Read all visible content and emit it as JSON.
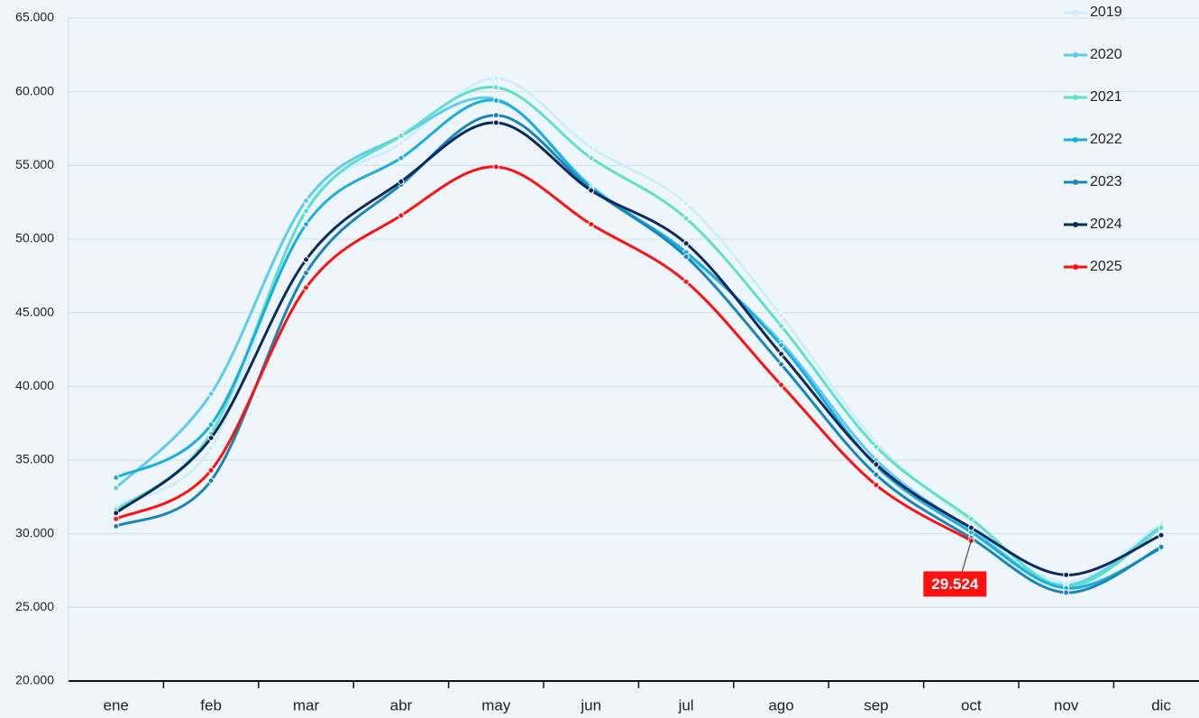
{
  "chart_data": {
    "type": "line",
    "categories": [
      "ene",
      "feb",
      "mar",
      "abr",
      "may",
      "jun",
      "jul",
      "ago",
      "sep",
      "oct",
      "nov",
      "dic"
    ],
    "ylim": [
      20000,
      65000
    ],
    "yticks": [
      {
        "value": 20000,
        "label": "20.000"
      },
      {
        "value": 25000,
        "label": "25.000"
      },
      {
        "value": 30000,
        "label": "30.000"
      },
      {
        "value": 35000,
        "label": "35.000"
      },
      {
        "value": 40000,
        "label": "40.000"
      },
      {
        "value": 45000,
        "label": "45.000"
      },
      {
        "value": 50000,
        "label": "50.000"
      },
      {
        "value": 55000,
        "label": "55.000"
      },
      {
        "value": 60000,
        "label": "60.000"
      },
      {
        "value": 65000,
        "label": "65.000"
      }
    ],
    "grid": true,
    "legend": "right",
    "series": [
      {
        "name": "2019",
        "color": "#cdeefa",
        "values": [
          31900,
          35800,
          52000,
          56500,
          60900,
          56200,
          52400,
          44800,
          36200,
          30800,
          26700,
          30700
        ]
      },
      {
        "name": "2020",
        "color": "#5ecbf0",
        "values": [
          33100,
          39500,
          52600,
          57000,
          59500,
          53600,
          49000,
          43000,
          35000,
          30300,
          26500,
          30500
        ]
      },
      {
        "name": "2021",
        "color": "#5fe0c8",
        "values": [
          31600,
          36800,
          51900,
          57000,
          60300,
          55500,
          51400,
          44100,
          35900,
          31000,
          26400,
          30400
        ]
      },
      {
        "name": "2022",
        "color": "#1aaee0",
        "values": [
          33800,
          37400,
          51000,
          55500,
          59400,
          53500,
          49100,
          42800,
          34600,
          30100,
          26300,
          29000
        ]
      },
      {
        "name": "2023",
        "color": "#1a86b8",
        "values": [
          30500,
          33600,
          47700,
          53700,
          58400,
          53400,
          48800,
          41500,
          34000,
          29700,
          26000,
          29100
        ]
      },
      {
        "name": "2024",
        "color": "#0d2a5e",
        "values": [
          31400,
          36500,
          48600,
          53900,
          57900,
          53300,
          49700,
          42200,
          34700,
          30400,
          27200,
          29900
        ]
      },
      {
        "name": "2025",
        "color": "#ff1010",
        "values": [
          31000,
          34300,
          46700,
          51600,
          54900,
          51000,
          47100,
          40100,
          33300,
          29524,
          null,
          null
        ],
        "value_labels": [
          null,
          null,
          null,
          null,
          null,
          null,
          null,
          null,
          null,
          "29.524",
          null,
          null
        ]
      }
    ]
  }
}
